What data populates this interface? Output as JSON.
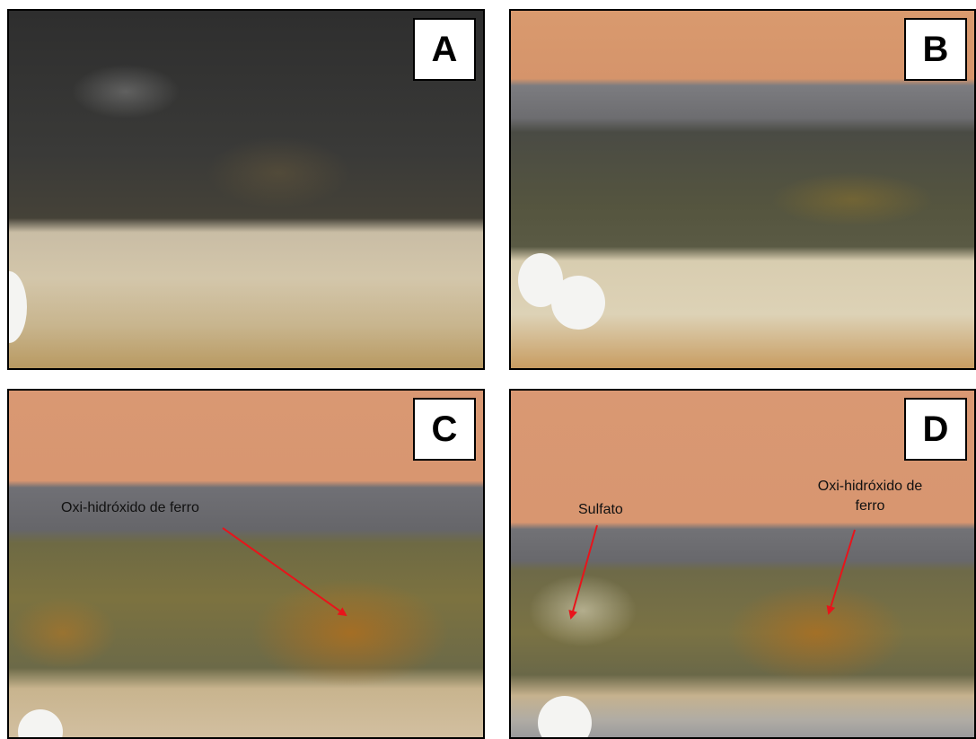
{
  "panels": [
    {
      "label": "A"
    },
    {
      "label": "B"
    },
    {
      "label": "C",
      "annotations": [
        {
          "lines": [
            "Oxi-hidróxido de ferro"
          ]
        }
      ]
    },
    {
      "label": "D",
      "annotations": [
        {
          "lines": [
            "Sulfato"
          ]
        },
        {
          "lines": [
            "Oxi-hidróxido de",
            "ferro"
          ]
        }
      ]
    }
  ]
}
